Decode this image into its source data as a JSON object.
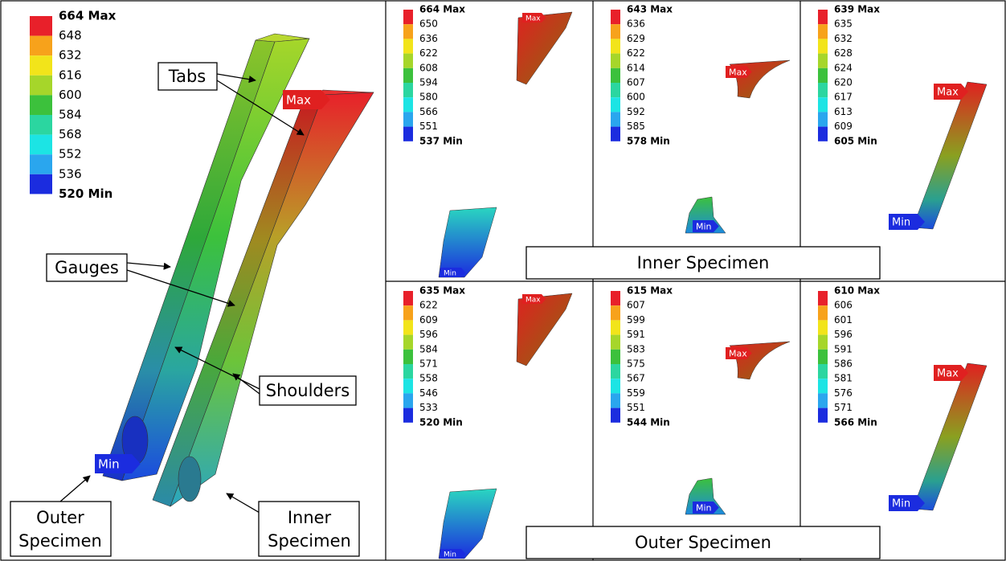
{
  "main": {
    "legend": [
      "664 Max",
      "648",
      "632",
      "616",
      "600",
      "584",
      "568",
      "552",
      "536",
      "520 Min"
    ],
    "max_marker": "Max",
    "min_marker": "Min",
    "callouts": {
      "tabs": "Tabs",
      "gauges": "Gauges",
      "shoulders": "Shoulders",
      "outer": [
        "Outer",
        "Specimen"
      ],
      "inner": [
        "Inner",
        "Specimen"
      ]
    }
  },
  "panels": [
    {
      "legend": [
        "664 Max",
        "650",
        "636",
        "622",
        "608",
        "594",
        "580",
        "566",
        "551",
        "537 Min"
      ],
      "max_marker": "Max",
      "min_marker": "Min"
    },
    {
      "legend": [
        "643 Max",
        "636",
        "629",
        "622",
        "614",
        "607",
        "600",
        "592",
        "585",
        "578 Min"
      ],
      "max_marker": "Max",
      "min_marker": "Min"
    },
    {
      "legend": [
        "639 Max",
        "635",
        "632",
        "628",
        "624",
        "620",
        "617",
        "613",
        "609",
        "605 Min"
      ],
      "max_marker": "Max",
      "min_marker": "Min"
    },
    {
      "legend": [
        "635 Max",
        "622",
        "609",
        "596",
        "584",
        "571",
        "558",
        "546",
        "533",
        "520 Min"
      ],
      "max_marker": "Max",
      "min_marker": "Min"
    },
    {
      "legend": [
        "615 Max",
        "607",
        "599",
        "591",
        "583",
        "575",
        "567",
        "559",
        "551",
        "544 Min"
      ],
      "max_marker": "Max",
      "min_marker": "Min"
    },
    {
      "legend": [
        "610 Max",
        "606",
        "601",
        "596",
        "591",
        "586",
        "581",
        "576",
        "571",
        "566 Min"
      ],
      "max_marker": "Max",
      "min_marker": "Min"
    }
  ],
  "section_labels": [
    "Inner Specimen",
    "Outer Specimen"
  ]
}
